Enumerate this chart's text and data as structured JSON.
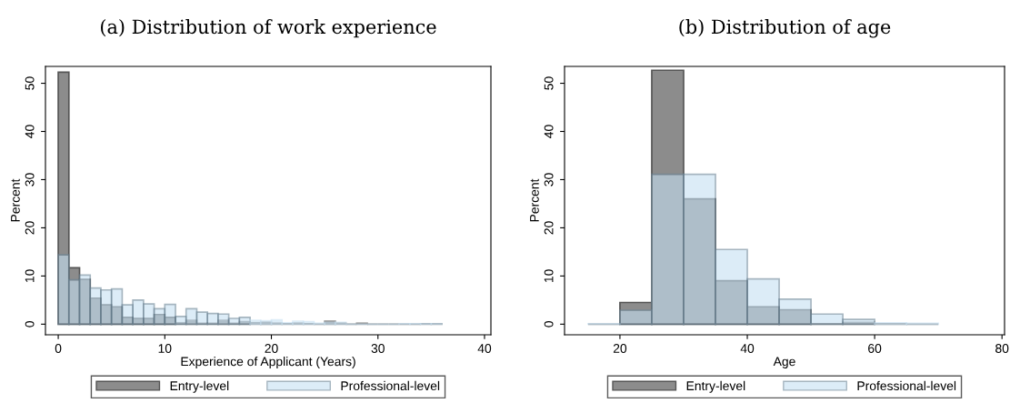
{
  "chart_data": [
    {
      "type": "histogram",
      "title": "(a) Distribution of work experience",
      "xlabel": "Experience of Applicant (Years)",
      "ylabel": "Percent",
      "bins": [
        0,
        1,
        2,
        3,
        4,
        5,
        6,
        7,
        8,
        9,
        10,
        11,
        12,
        13,
        14,
        15,
        16,
        17,
        18,
        19,
        20,
        21,
        22,
        23,
        24,
        25,
        26,
        27,
        28,
        29,
        30,
        31,
        32,
        33,
        34,
        35,
        36
      ],
      "series": [
        {
          "name": "Entry-level",
          "color": "#8c8c8c",
          "values": [
            52.3,
            11.7,
            9.3,
            5.4,
            4.0,
            3.6,
            1.4,
            1.2,
            1.2,
            2.0,
            1.4,
            0.3,
            0.8,
            0.2,
            0.2,
            0.8,
            0.2,
            0.5,
            0.3,
            0.4,
            0.2,
            0.1,
            0.2,
            0.1,
            0,
            0.6,
            0.2,
            0,
            0.2,
            0,
            0,
            0,
            0,
            0,
            0.1,
            0.1
          ]
        },
        {
          "name": "Professional-level",
          "color": "#c6e0f2",
          "values": [
            14.4,
            9.2,
            10.2,
            7.5,
            7.1,
            7.3,
            4.0,
            5.0,
            4.2,
            3.2,
            4.1,
            1.6,
            3.2,
            2.5,
            2.2,
            2.1,
            1.2,
            1.4,
            0.8,
            0.7,
            0.9,
            0.3,
            0.6,
            0.5,
            0.2,
            0.4,
            0.4,
            0,
            0,
            0,
            0,
            0,
            0.1,
            0.1,
            0.1,
            0.1
          ]
        }
      ],
      "xlim": [
        -1.2,
        40.6
      ],
      "xticks": [
        0,
        10,
        20,
        30,
        40
      ],
      "ylim": [
        -2.2,
        53.5
      ],
      "yticks": [
        0,
        10,
        20,
        30,
        40,
        50
      ],
      "legend": "bottom",
      "grid": false
    },
    {
      "type": "histogram",
      "title": "(b) Distribution of age",
      "xlabel": "Age",
      "ylabel": "Percent",
      "bins": [
        15,
        20,
        25,
        30,
        35,
        40,
        45,
        50,
        55,
        60,
        65,
        70
      ],
      "series": [
        {
          "name": "Entry-level",
          "color": "#8c8c8c",
          "values": [
            0,
            4.5,
            52.7,
            26.0,
            9.0,
            3.6,
            3.0,
            0.1,
            0.4,
            0.1,
            0
          ]
        },
        {
          "name": "Professional-level",
          "color": "#c6e0f2",
          "values": [
            0.1,
            2.9,
            31.1,
            31.1,
            15.5,
            9.4,
            5.2,
            2.1,
            1.0,
            0.3,
            0.2
          ]
        }
      ],
      "xlim": [
        11.3,
        80.4
      ],
      "xticks": [
        20,
        40,
        60,
        80
      ],
      "ylim": [
        -2.2,
        53.5
      ],
      "yticks": [
        0,
        10,
        20,
        30,
        40,
        50
      ],
      "legend": "bottom",
      "grid": false
    }
  ]
}
